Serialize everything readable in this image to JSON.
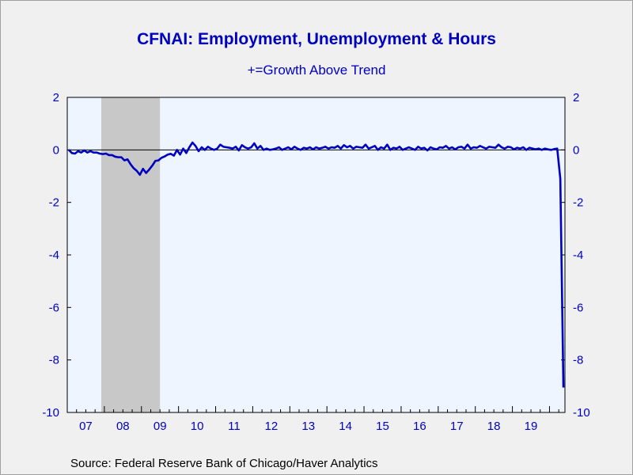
{
  "title": "CFNAI: Employment, Unemployment & Hours",
  "subtitle": "+=Growth Above Trend",
  "source": "Source:  Federal Reserve Bank of Chicago/Haver Analytics",
  "colors": {
    "line": "#0000c0",
    "plot_bg": "#eef5ff",
    "recession": "#c8c8c8",
    "page_bg": "#f0f0f0"
  },
  "chart_data": {
    "type": "line",
    "title": "CFNAI: Employment, Unemployment & Hours",
    "subtitle": "+=Growth Above Trend",
    "ylim": [
      -10,
      2
    ],
    "yticks": [
      2,
      0,
      -2,
      -4,
      -6,
      -8,
      -10
    ],
    "y_axis_both_sides": true,
    "xlim": [
      "2007-01",
      "2020-06"
    ],
    "xtick_labels": [
      "07",
      "08",
      "09",
      "10",
      "11",
      "12",
      "13",
      "14",
      "15",
      "16",
      "17",
      "18",
      "19"
    ],
    "zero_line": true,
    "grid": false,
    "recession_shading": [
      {
        "start": "2007-12",
        "end": "2009-06"
      }
    ],
    "series": [
      {
        "start": "2007-01",
        "frequency": "monthly",
        "values": [
          0.0,
          -0.12,
          -0.14,
          -0.05,
          -0.1,
          -0.02,
          -0.1,
          -0.05,
          -0.1,
          -0.1,
          -0.14,
          -0.16,
          -0.14,
          -0.2,
          -0.2,
          -0.26,
          -0.28,
          -0.28,
          -0.4,
          -0.36,
          -0.55,
          -0.7,
          -0.8,
          -0.95,
          -0.72,
          -0.88,
          -0.75,
          -0.6,
          -0.42,
          -0.4,
          -0.3,
          -0.25,
          -0.18,
          -0.15,
          -0.22,
          0.0,
          -0.18,
          0.05,
          -0.12,
          0.1,
          0.28,
          0.15,
          -0.05,
          0.1,
          0.0,
          0.12,
          0.05,
          0.0,
          0.05,
          0.2,
          0.12,
          0.1,
          0.08,
          0.05,
          0.12,
          -0.02,
          0.18,
          0.1,
          0.05,
          0.1,
          0.25,
          0.05,
          0.15,
          0.0,
          0.05,
          0.0,
          0.02,
          0.05,
          0.1,
          0.0,
          0.05,
          0.1,
          0.02,
          0.12,
          0.05,
          0.0,
          0.08,
          0.05,
          0.1,
          0.02,
          0.1,
          0.05,
          0.08,
          0.12,
          0.05,
          0.1,
          0.08,
          0.15,
          0.05,
          0.18,
          0.1,
          0.15,
          0.05,
          0.12,
          0.1,
          0.08,
          0.2,
          0.05,
          0.1,
          0.15,
          0.0,
          0.1,
          0.05,
          0.2,
          0.0,
          0.08,
          0.05,
          0.12,
          0.0,
          0.05,
          0.1,
          0.05,
          0.0,
          0.12,
          0.05,
          0.08,
          -0.02,
          0.1,
          0.05,
          0.02,
          0.1,
          0.08,
          0.15,
          0.05,
          0.1,
          0.02,
          0.1,
          0.12,
          0.05,
          0.2,
          0.05,
          0.1,
          0.08,
          0.15,
          0.1,
          0.05,
          0.12,
          0.1,
          0.08,
          0.2,
          0.1,
          0.05,
          0.12,
          0.1,
          0.02,
          0.08,
          0.05,
          0.1,
          0.0,
          0.08,
          0.05,
          0.02,
          0.05,
          0.0,
          0.05,
          0.02,
          0.0,
          0.03,
          0.05,
          -1.1,
          -9.05
        ]
      }
    ]
  }
}
